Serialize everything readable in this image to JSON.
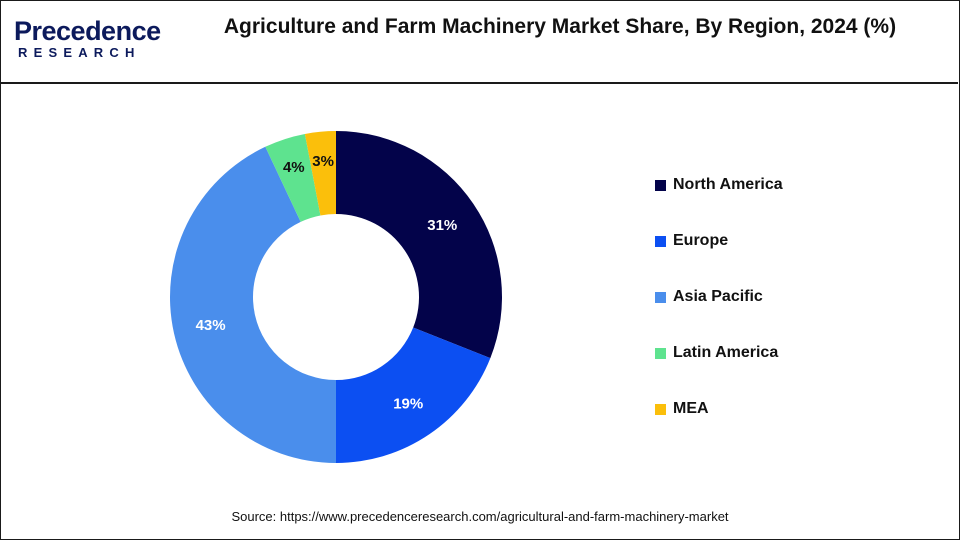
{
  "logo": {
    "wordmark": "Precedence",
    "subtext": "RESEARCH"
  },
  "header": {
    "title": "Agriculture and Farm Machinery Market Share, By Region, 2024 (%)"
  },
  "source": "Source: https://www.precedenceresearch.com/agricultural-and-farm-machinery-market",
  "chart_data": {
    "type": "pie",
    "variant": "donut",
    "title": "Agriculture and Farm Machinery Market Share, By Region, 2024 (%)",
    "legend_position": "right",
    "categories": [
      "North America",
      "Europe",
      "Asia Pacific",
      "Latin America",
      "MEA"
    ],
    "values": [
      31,
      19,
      43,
      4,
      3
    ],
    "labels": [
      "31%",
      "19%",
      "43%",
      "4%",
      "3%"
    ],
    "colors": [
      "#03034a",
      "#0c4ff2",
      "#4a8eec",
      "#5ee38f",
      "#fbbf0b"
    ],
    "label_colors": [
      "#ffffff",
      "#ffffff",
      "#ffffff",
      "#111111",
      "#111111"
    ]
  }
}
